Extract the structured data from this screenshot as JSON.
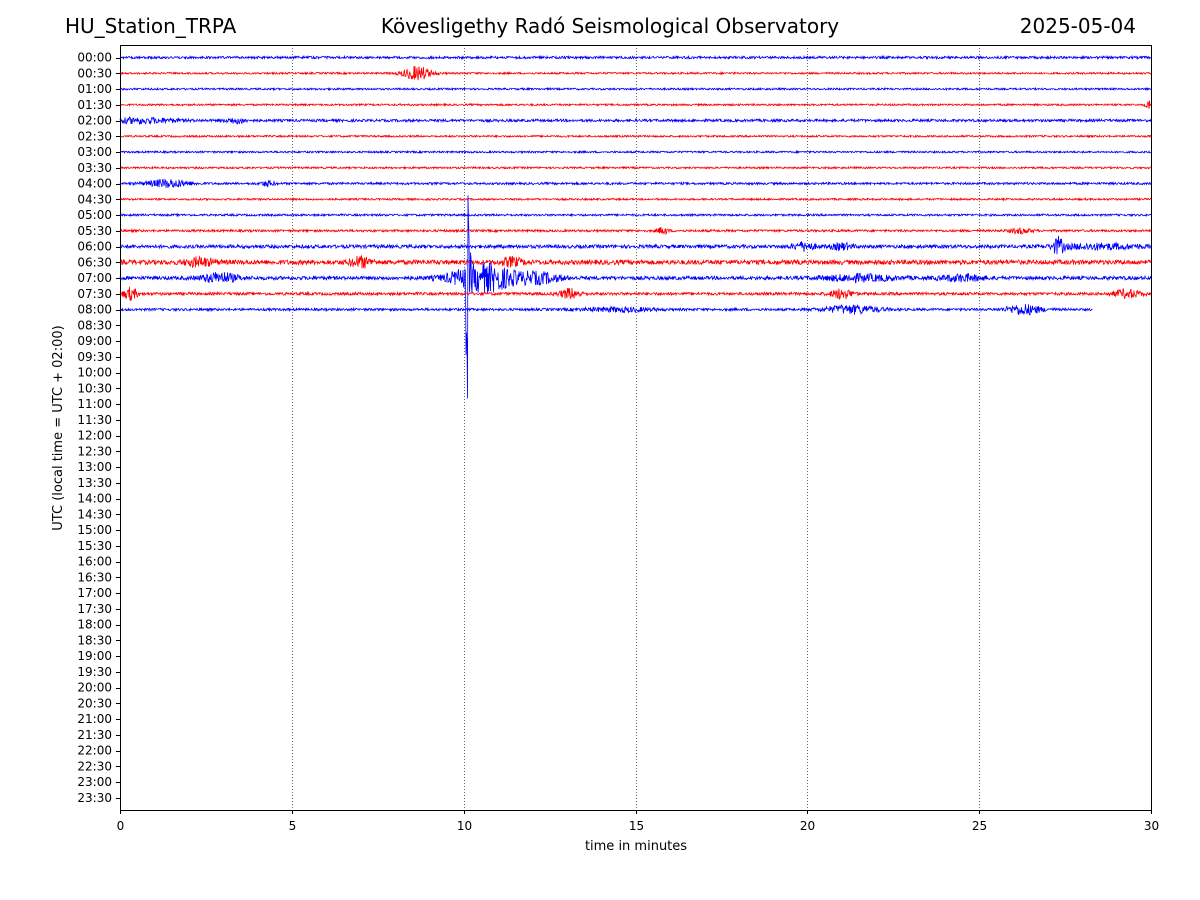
{
  "header": {
    "station": "HU_Station_TRPA",
    "observatory": "Kövesligethy Radó Seismological Observatory",
    "date": "2025-05-04"
  },
  "chart_data": {
    "type": "line",
    "title": "Kövesligethy Radó Seismological Observatory",
    "xlabel": "time in minutes",
    "ylabel": "UTC (local time = UTC + 02:00)",
    "xlim": [
      0,
      30
    ],
    "xticks": [
      0,
      5,
      10,
      15,
      20,
      25,
      30
    ],
    "grid": "vertical dotted lines at x ticks",
    "colors": [
      "#0000ff",
      "#ff0000"
    ],
    "row_labels": [
      "00:00",
      "00:30",
      "01:00",
      "01:30",
      "02:00",
      "02:30",
      "03:00",
      "03:30",
      "04:00",
      "04:30",
      "05:00",
      "05:30",
      "06:00",
      "06:30",
      "07:00",
      "07:30",
      "08:00",
      "08:30",
      "09:00",
      "09:30",
      "10:00",
      "10:30",
      "11:00",
      "11:30",
      "12:00",
      "12:30",
      "13:00",
      "13:30",
      "14:00",
      "14:30",
      "15:00",
      "15:30",
      "16:00",
      "16:30",
      "17:00",
      "17:30",
      "18:00",
      "18:30",
      "19:00",
      "19:30",
      "20:00",
      "20:30",
      "21:00",
      "21:30",
      "22:00",
      "22:30",
      "23:00",
      "23:30"
    ],
    "traces": [
      {
        "row": "00:00",
        "end_minute": 30,
        "noise": 1.2,
        "bursts": []
      },
      {
        "row": "00:30",
        "end_minute": 30,
        "noise": 0.9,
        "bursts": [
          [
            8.65,
            0.4,
            7
          ]
        ]
      },
      {
        "row": "01:00",
        "end_minute": 30,
        "noise": 0.9,
        "bursts": []
      },
      {
        "row": "01:30",
        "end_minute": 30,
        "noise": 0.9,
        "bursts": [
          [
            29.95,
            0.1,
            5
          ]
        ]
      },
      {
        "row": "02:00",
        "end_minute": 30,
        "noise": 1.3,
        "bursts": [
          [
            0.6,
            1.0,
            2.5
          ],
          [
            3.4,
            0.3,
            2.5
          ]
        ]
      },
      {
        "row": "02:30",
        "end_minute": 30,
        "noise": 0.9,
        "bursts": []
      },
      {
        "row": "03:00",
        "end_minute": 30,
        "noise": 0.9,
        "bursts": []
      },
      {
        "row": "03:30",
        "end_minute": 30,
        "noise": 0.9,
        "bursts": []
      },
      {
        "row": "04:00",
        "end_minute": 30,
        "noise": 1.1,
        "bursts": [
          [
            1.4,
            0.6,
            4
          ],
          [
            4.3,
            0.2,
            2.5
          ]
        ]
      },
      {
        "row": "04:30",
        "end_minute": 30,
        "noise": 0.9,
        "bursts": []
      },
      {
        "row": "05:00",
        "end_minute": 30,
        "noise": 1.0,
        "bursts": []
      },
      {
        "row": "05:30",
        "end_minute": 30,
        "noise": 1.1,
        "bursts": [
          [
            15.8,
            0.15,
            3.5
          ],
          [
            26.2,
            0.3,
            2.5
          ]
        ]
      },
      {
        "row": "06:00",
        "end_minute": 30,
        "noise": 1.7,
        "bursts": [
          [
            19.9,
            0.3,
            4
          ],
          [
            21.0,
            0.3,
            3
          ],
          [
            27.3,
            0.15,
            8
          ],
          [
            28.5,
            1.2,
            2.5
          ]
        ]
      },
      {
        "row": "06:30",
        "end_minute": 30,
        "noise": 2.3,
        "bursts": [
          [
            2.3,
            0.4,
            4
          ],
          [
            7.0,
            0.3,
            5
          ],
          [
            11.4,
            0.3,
            4
          ]
        ]
      },
      {
        "row": "07:00",
        "end_minute": 30,
        "noise": 1.8,
        "bursts": [
          [
            2.9,
            0.5,
            5
          ],
          [
            10.1,
            0.1,
            150
          ],
          [
            10.6,
            0.9,
            14
          ],
          [
            12.2,
            0.6,
            5
          ],
          [
            21.5,
            1.0,
            3
          ],
          [
            24.5,
            0.6,
            3
          ]
        ]
      },
      {
        "row": "07:30",
        "end_minute": 30,
        "noise": 1.4,
        "bursts": [
          [
            0.3,
            0.2,
            6
          ],
          [
            13.1,
            0.3,
            5
          ],
          [
            21.0,
            0.3,
            5
          ],
          [
            29.3,
            0.4,
            4
          ]
        ]
      },
      {
        "row": "08:00",
        "end_minute": 28.3,
        "noise": 1.2,
        "bursts": [
          [
            14.5,
            1.0,
            2
          ],
          [
            21.3,
            0.8,
            4
          ],
          [
            26.3,
            0.5,
            5
          ]
        ]
      }
    ]
  }
}
